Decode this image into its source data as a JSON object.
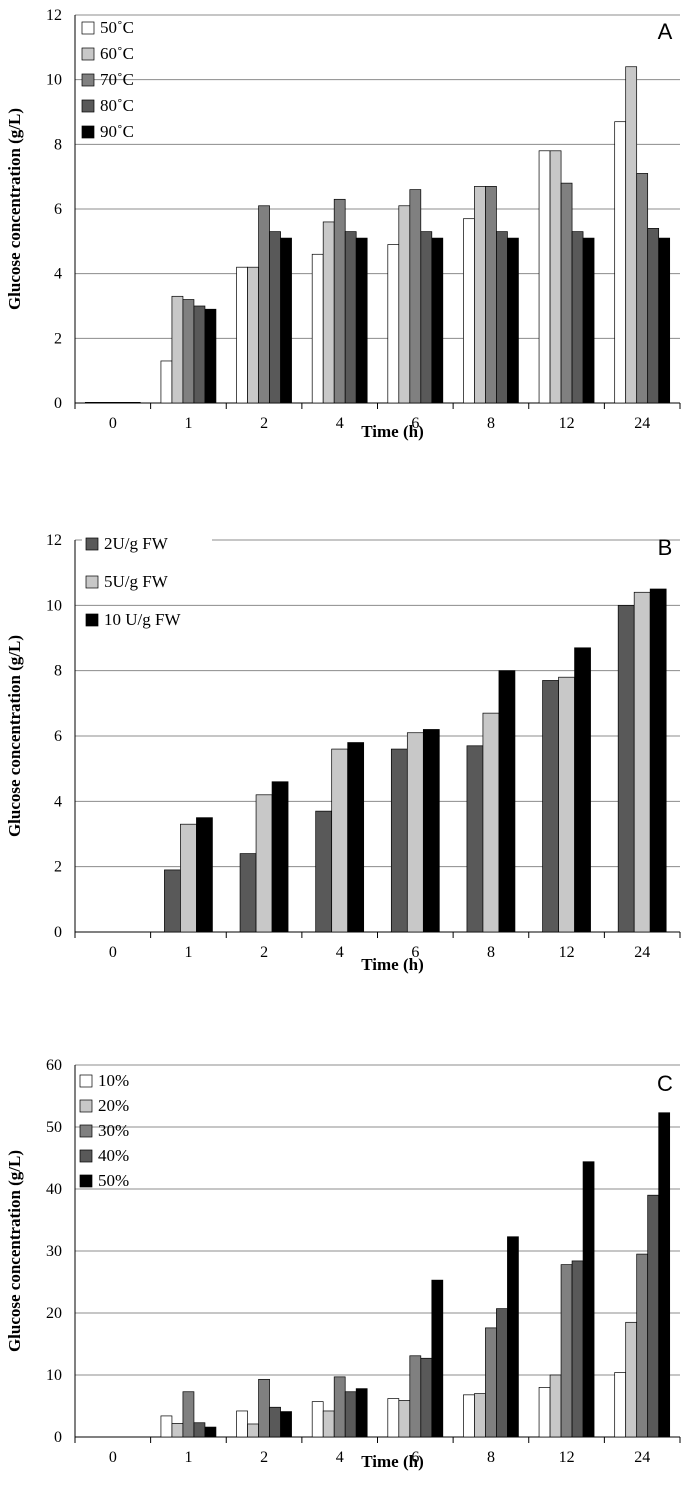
{
  "chart_data": [
    {
      "type": "bar",
      "panel_label": "A",
      "categories": [
        "0",
        "1",
        "2",
        "4",
        "6",
        "8",
        "12",
        "24"
      ],
      "series": [
        {
          "name": "50˚C",
          "color": "#ffffff",
          "values": [
            0.02,
            1.3,
            4.2,
            4.6,
            4.9,
            5.7,
            7.8,
            8.7
          ]
        },
        {
          "name": "60˚C",
          "color": "#c8c8c8",
          "values": [
            0.02,
            3.3,
            4.2,
            5.6,
            6.1,
            6.7,
            7.8,
            10.4
          ]
        },
        {
          "name": "70˚C",
          "color": "#808080",
          "values": [
            0.02,
            3.2,
            6.1,
            6.3,
            6.6,
            6.7,
            6.8,
            7.1
          ]
        },
        {
          "name": "80˚C",
          "color": "#595959",
          "values": [
            0.02,
            3.0,
            5.3,
            5.3,
            5.3,
            5.3,
            5.3,
            5.4
          ]
        },
        {
          "name": "90˚C",
          "color": "#000000",
          "values": [
            0.02,
            2.9,
            5.1,
            5.1,
            5.1,
            5.1,
            5.1,
            5.1
          ]
        }
      ],
      "xlabel": "Time (h)",
      "ylabel": "Glucose concentration (g/L)",
      "ylim": [
        0,
        12
      ],
      "yticks": [
        0,
        2,
        4,
        6,
        8,
        10,
        12
      ],
      "grid": true,
      "legend_position": "top-left"
    },
    {
      "type": "bar",
      "panel_label": "B",
      "categories": [
        "0",
        "1",
        "2",
        "4",
        "6",
        "8",
        "12",
        "24"
      ],
      "series": [
        {
          "name": "2U/g FW",
          "color": "#595959",
          "values": [
            0,
            1.9,
            2.4,
            3.7,
            5.6,
            5.7,
            7.7,
            10.0
          ]
        },
        {
          "name": "5U/g FW",
          "color": "#c8c8c8",
          "values": [
            0,
            3.3,
            4.2,
            5.6,
            6.1,
            6.7,
            7.8,
            10.4
          ]
        },
        {
          "name": "10 U/g FW",
          "color": "#000000",
          "values": [
            0,
            3.5,
            4.6,
            5.8,
            6.2,
            8.0,
            8.7,
            10.5
          ]
        }
      ],
      "xlabel": "Time (h)",
      "ylabel": "Glucose concentration (g/L)",
      "ylim": [
        0,
        12
      ],
      "yticks": [
        0,
        2,
        4,
        6,
        8,
        10,
        12
      ],
      "grid": true,
      "legend_position": "top-left"
    },
    {
      "type": "bar",
      "panel_label": "C",
      "categories": [
        "0",
        "1",
        "2",
        "4",
        "6",
        "8",
        "12",
        "24"
      ],
      "series": [
        {
          "name": "10%",
          "color": "#ffffff",
          "values": [
            0,
            3.4,
            4.2,
            5.7,
            6.2,
            6.8,
            8.0,
            10.4
          ]
        },
        {
          "name": "20%",
          "color": "#c8c8c8",
          "values": [
            0,
            2.2,
            2.1,
            4.2,
            5.9,
            7.0,
            10.0,
            18.5
          ]
        },
        {
          "name": "30%",
          "color": "#808080",
          "values": [
            0,
            7.3,
            9.3,
            9.7,
            13.1,
            17.6,
            27.8,
            29.5
          ]
        },
        {
          "name": "40%",
          "color": "#595959",
          "values": [
            0,
            2.3,
            4.8,
            7.3,
            12.7,
            20.7,
            28.4,
            39.0
          ]
        },
        {
          "name": "50%",
          "color": "#000000",
          "values": [
            0,
            1.6,
            4.1,
            7.8,
            25.3,
            32.3,
            44.4,
            52.3
          ]
        }
      ],
      "xlabel": "Time (h)",
      "ylabel": "Glucose concentration (g/L)",
      "ylim": [
        0,
        60
      ],
      "yticks": [
        0,
        10,
        20,
        30,
        40,
        50,
        60
      ],
      "grid": true,
      "legend_position": "top-left"
    }
  ]
}
